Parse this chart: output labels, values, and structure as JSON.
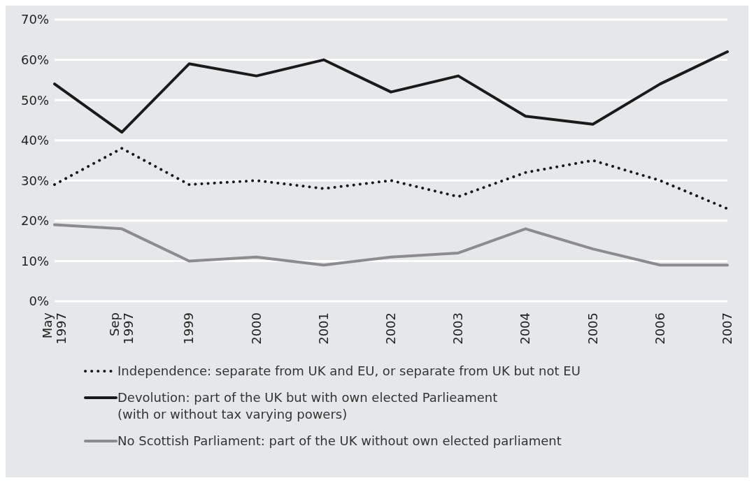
{
  "chart_data": {
    "type": "line",
    "categories": [
      "May 1997",
      "Sep 1997",
      "1999",
      "2000",
      "2001",
      "2002",
      "2003",
      "2004",
      "2005",
      "2006",
      "2007"
    ],
    "series": [
      {
        "name": "Independence: separate from UK and EU, or separate from UK but not EU",
        "color": "#1a1a1a",
        "line_style": "dotted",
        "values": [
          29,
          38,
          29,
          30,
          28,
          30,
          26,
          32,
          35,
          30,
          23
        ]
      },
      {
        "name": "Devolution: part of the UK but with own elected Parlieament\n(with or without tax varying powers)",
        "color": "#1a1a1a",
        "line_style": "solid",
        "values": [
          54,
          42,
          59,
          56,
          60,
          52,
          56,
          46,
          44,
          54,
          62
        ]
      },
      {
        "name": "No Scottish Parliament: part of the UK without own elected parliament",
        "color": "#8c8c8e",
        "line_style": "solid",
        "values": [
          19,
          18,
          10,
          11,
          9,
          11,
          12,
          18,
          13,
          9,
          9
        ]
      }
    ],
    "ylim": [
      0,
      70
    ],
    "yticks": [
      {
        "value": 0,
        "label": "0%"
      },
      {
        "value": 10,
        "label": "10%"
      },
      {
        "value": 20,
        "label": "20%"
      },
      {
        "value": 30,
        "label": "30%"
      },
      {
        "value": 40,
        "label": "40%"
      },
      {
        "value": 50,
        "label": "50%"
      },
      {
        "value": 60,
        "label": "60%"
      },
      {
        "value": 70,
        "label": "70%"
      }
    ],
    "grid": "y",
    "legend": "bottom",
    "marker": "none"
  }
}
